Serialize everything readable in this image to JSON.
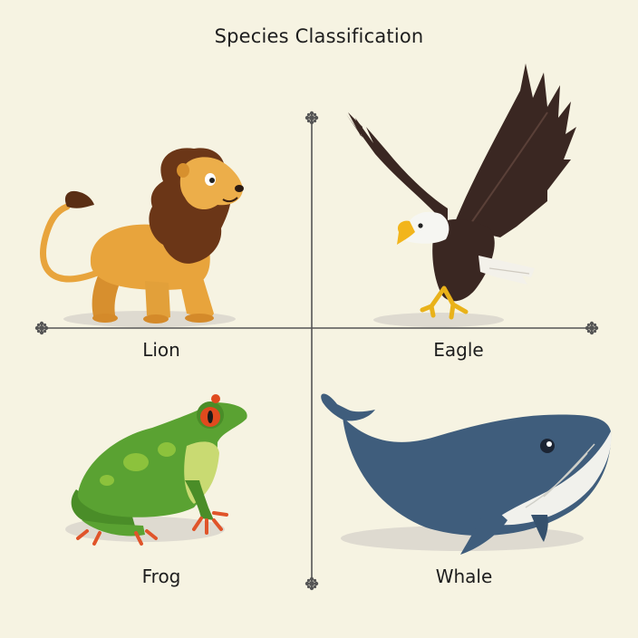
{
  "title": "Species Classification",
  "quadrants": [
    {
      "label": "Lion"
    },
    {
      "label": "Eagle"
    },
    {
      "label": "Frog"
    },
    {
      "label": "Whale"
    }
  ],
  "icons": [
    "lion-illustration",
    "eagle-illustration",
    "frog-illustration",
    "whale-illustration",
    "axis-ornament-icon"
  ],
  "colors": {
    "background": "#f6f3e2",
    "axis": "#555555",
    "lion_body": "#e8a43c",
    "lion_mane": "#6b3617",
    "eagle_wing": "#3a2722",
    "eagle_beak": "#f2b51c",
    "frog_body": "#5aa232",
    "frog_eye": "#e04a1e",
    "whale_body": "#3f5d7c",
    "whale_belly": "#f1f1ec"
  }
}
